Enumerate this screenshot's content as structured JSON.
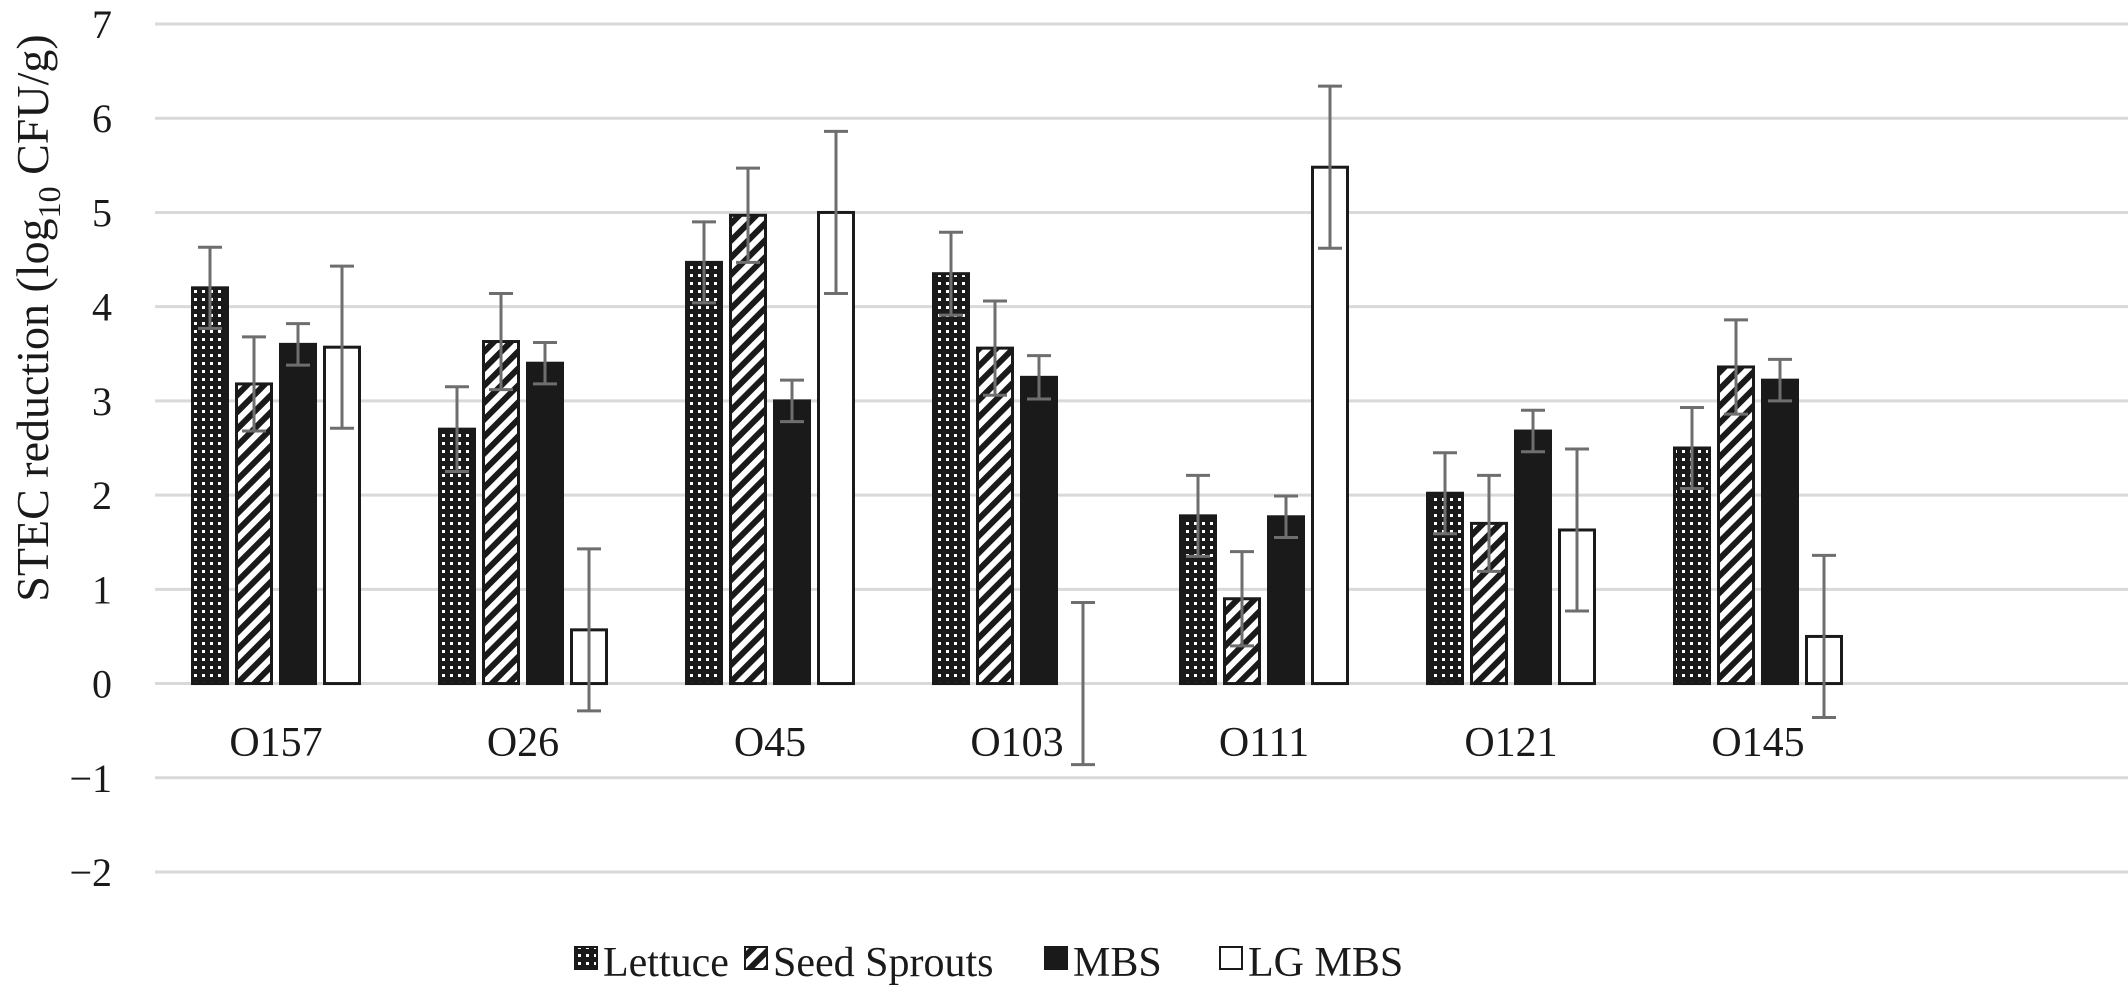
{
  "chart_data": {
    "type": "bar",
    "ylabel_main": "STEC reduction (log",
    "ylabel_sub": "10",
    "ylabel_tail": " CFU/g)",
    "ylim": [
      -2,
      7
    ],
    "yticks": [
      -2,
      -1,
      0,
      1,
      2,
      3,
      4,
      5,
      6,
      7
    ],
    "ytick_labels": [
      "−2",
      "−1",
      "0",
      "1",
      "2",
      "3",
      "4",
      "5",
      "6",
      "7"
    ],
    "grid": true,
    "legend_position": "bottom",
    "categories": [
      "O157",
      "O26",
      "O45",
      "O103",
      "O111",
      "O121",
      "O145"
    ],
    "series": [
      {
        "name": "Lettuce",
        "pattern": "dots",
        "values": [
          4.2,
          2.7,
          4.47,
          4.35,
          1.78,
          2.02,
          2.5
        ],
        "errors": [
          0.43,
          0.45,
          0.43,
          0.44,
          0.43,
          0.43,
          0.43
        ]
      },
      {
        "name": "Seed Sprouts",
        "pattern": "diagonal",
        "values": [
          3.18,
          3.63,
          4.97,
          3.56,
          0.9,
          1.7,
          3.36
        ],
        "errors": [
          0.5,
          0.51,
          0.5,
          0.5,
          0.5,
          0.51,
          0.5
        ]
      },
      {
        "name": "MBS",
        "pattern": "solid",
        "values": [
          3.6,
          3.4,
          3.0,
          3.25,
          1.77,
          2.68,
          3.22
        ],
        "errors": [
          0.22,
          0.22,
          0.22,
          0.23,
          0.22,
          0.22,
          0.22
        ]
      },
      {
        "name": "LG MBS",
        "pattern": "open",
        "values": [
          3.57,
          0.57,
          5.0,
          0.0,
          5.48,
          1.63,
          0.5
        ],
        "errors": [
          0.86,
          0.86,
          0.86,
          0.86,
          0.86,
          0.86,
          0.86
        ]
      }
    ],
    "colors": {
      "bar_fill": "#1a1a1a",
      "bar_outline": "#1a1a1a",
      "open_fill": "#ffffff",
      "error_bar": "#6e6e6e",
      "grid": "#d9d9d9"
    }
  }
}
